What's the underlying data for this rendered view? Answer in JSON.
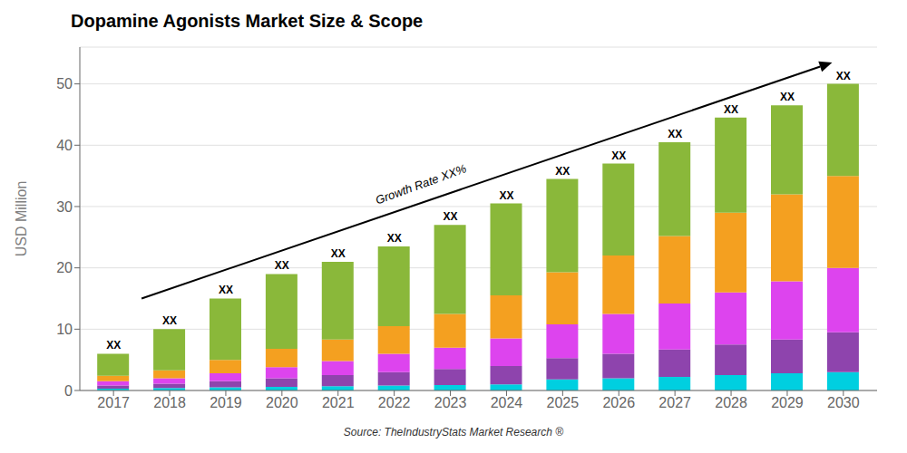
{
  "chart_data": {
    "type": "bar",
    "title": "Dopamine Agonists Market Size & Scope",
    "ylabel": "USD Million",
    "source": "Source: TheIndustryStats Market Research ®",
    "stacked": true,
    "grid": true,
    "x": [
      2017,
      2018,
      2019,
      2020,
      2021,
      2022,
      2023,
      2024,
      2025,
      2026,
      2027,
      2028,
      2029,
      2030
    ],
    "xlim": [
      2016.4,
      2030.6
    ],
    "xticks": [
      2017,
      2018,
      2019,
      2020,
      2021,
      2022,
      2023,
      2024,
      2025,
      2026,
      2027,
      2028,
      2029,
      2030
    ],
    "ylim": [
      0,
      56
    ],
    "yticks": [
      0,
      10,
      20,
      30,
      40,
      50
    ],
    "series": [
      {
        "color": "#00cfe0",
        "values": [
          0.3,
          0.4,
          0.5,
          0.6,
          0.7,
          0.8,
          0.9,
          1.0,
          1.8,
          2.0,
          2.2,
          2.5,
          2.8,
          3.0
        ]
      },
      {
        "color": "#8e44ad",
        "values": [
          0.5,
          0.7,
          1.0,
          1.4,
          1.8,
          2.2,
          2.6,
          3.0,
          3.5,
          4.0,
          4.5,
          5.0,
          5.5,
          6.5
        ]
      },
      {
        "color": "#dd44ee",
        "values": [
          0.7,
          0.9,
          1.3,
          1.8,
          2.3,
          3.0,
          3.5,
          4.5,
          5.5,
          6.5,
          7.5,
          8.5,
          9.5,
          10.5
        ]
      },
      {
        "color": "#f4a020",
        "values": [
          0.9,
          1.3,
          2.2,
          3.0,
          3.5,
          4.5,
          5.5,
          7.0,
          8.5,
          9.5,
          11.0,
          13.0,
          14.2,
          15.0
        ]
      },
      {
        "color": "#8ab83a",
        "values": [
          3.6,
          6.7,
          10.0,
          12.2,
          12.7,
          13.0,
          14.5,
          15.0,
          15.2,
          15.0,
          15.3,
          15.5,
          14.5,
          15.0
        ]
      }
    ],
    "annotations": [
      {
        "text": "XX",
        "x": 2017,
        "y": 6.0
      },
      {
        "text": "XX",
        "x": 2018,
        "y": 10.0
      },
      {
        "text": "XX",
        "x": 2019,
        "y": 15.0
      },
      {
        "text": "XX",
        "x": 2020,
        "y": 19.0
      },
      {
        "text": "XX",
        "x": 2021,
        "y": 21.0
      },
      {
        "text": "XX",
        "x": 2022,
        "y": 23.5
      },
      {
        "text": "XX",
        "x": 2023,
        "y": 27.0
      },
      {
        "text": "XX",
        "x": 2024,
        "y": 30.5
      },
      {
        "text": "XX",
        "x": 2025,
        "y": 34.5
      },
      {
        "text": "XX",
        "x": 2026,
        "y": 37.0
      },
      {
        "text": "XX",
        "x": 2027,
        "y": 40.5
      },
      {
        "text": "XX",
        "x": 2028,
        "y": 44.5
      },
      {
        "text": "XX",
        "x": 2029,
        "y": 46.5
      },
      {
        "text": "XX",
        "x": 2030,
        "y": 50.0
      },
      {
        "text": "Growth Rate XX%",
        "x": 2022.5,
        "y": 33.0,
        "rotated": true
      }
    ],
    "arrows": [
      {
        "x": [
          2017.5,
          2029.8
        ],
        "y": [
          15.0,
          53.5
        ]
      }
    ]
  }
}
